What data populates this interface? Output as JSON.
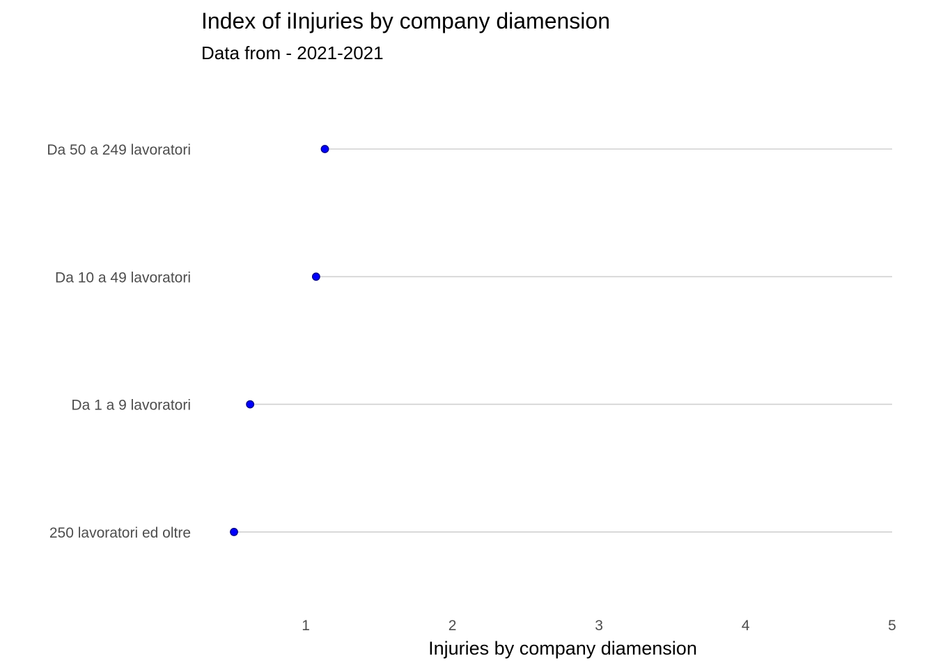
{
  "chart_data": {
    "type": "lollipop",
    "title": "Index of iInjuries by company diamension",
    "subtitle": "Data  from - 2021-2021",
    "xlabel": "Injuries by company diamension",
    "ylabel": "",
    "categories": [
      "Da 50 a 249 lavoratori",
      "Da 10 a 49 lavoratori",
      "Da 1 a 9 lavoratori",
      "250 lavoratori ed oltre"
    ],
    "values": [
      1.13,
      1.07,
      0.62,
      0.51
    ],
    "xlim": [
      0.51,
      5
    ],
    "xticks": [
      1,
      2,
      3,
      4,
      5
    ],
    "stem_end": 5,
    "grid": false,
    "colors": {
      "point": "#0000ff",
      "point_outline": "#00008b",
      "stem": "#d0d0d0"
    }
  }
}
